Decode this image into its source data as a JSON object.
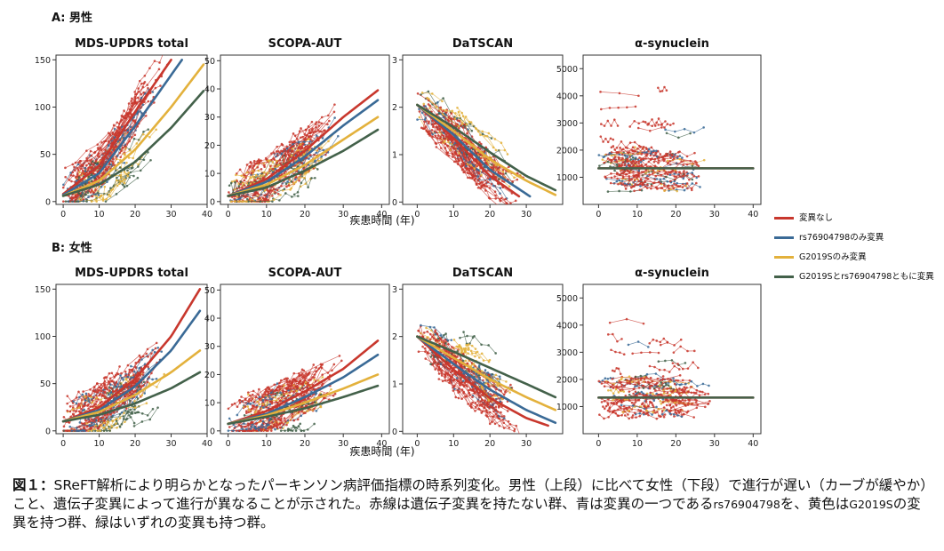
{
  "figure_caption": {
    "label": "図１：",
    "text_1": "SReFT解析により明らかとなったパーキンソン病評価指標の時系列変化。男性（上段）に比べて女性（下段）で進行が遅い（カーブが緩やか）こと、遺伝子変異によって進行が異なることが示された。赤線は遺伝子変異を持たない群、青は変異の一つである",
    "text_rs": "rs76904798",
    "text_2": "を、黄色は",
    "text_g": "G2019S",
    "text_3": "の変異を持つ群、緑はいずれの変異も持つ群。"
  },
  "legend": [
    {
      "label": "変異なし",
      "color": "#c8372d"
    },
    {
      "label": "rs76904798のみ変異",
      "color": "#3a6a96"
    },
    {
      "label": "G2019Sのみ変異",
      "color": "#e3b13c"
    },
    {
      "label": "G2019Sとrs76904798ともに変異",
      "color": "#43614a"
    }
  ],
  "colors": {
    "red": "#c8372d",
    "blue": "#3a6a96",
    "yellow": "#e3b13c",
    "green": "#43614a"
  },
  "chart_data": [
    {
      "row_label": "A: 男性",
      "type": "line",
      "title": "MDS-UPDRS total",
      "xlabel": "疾患時間 (年)",
      "xlim": [
        -2,
        40
      ],
      "ylim": [
        -3,
        155
      ],
      "xticks": [
        0,
        10,
        20,
        30,
        40
      ],
      "yticks": [
        0,
        50,
        100,
        150
      ],
      "series": [
        {
          "name": "変異なし",
          "x": [
            0,
            10,
            20,
            30
          ],
          "y": [
            8,
            38,
            95,
            150
          ]
        },
        {
          "name": "rs76904798のみ変異",
          "x": [
            0,
            10,
            20,
            33
          ],
          "y": [
            7,
            30,
            80,
            150
          ]
        },
        {
          "name": "G2019Sのみ変異",
          "x": [
            0,
            10,
            20,
            30,
            39
          ],
          "y": [
            6,
            22,
            55,
            100,
            145
          ]
        },
        {
          "name": "G2019Sとrs76904798ともに変異",
          "x": [
            0,
            10,
            20,
            30,
            39
          ],
          "y": [
            6,
            18,
            42,
            78,
            117
          ]
        }
      ]
    },
    {
      "row_label": "A: 男性",
      "type": "line",
      "title": "SCOPA-AUT",
      "xlabel": "疾患時間 (年)",
      "xlim": [
        -2,
        42
      ],
      "ylim": [
        -1,
        52
      ],
      "xticks": [
        0,
        10,
        20,
        30,
        40
      ],
      "yticks": [
        0,
        10,
        20,
        30,
        40,
        50
      ],
      "series": [
        {
          "name": "変異なし",
          "x": [
            0,
            10,
            20,
            30,
            39
          ],
          "y": [
            2,
            8,
            18,
            30,
            39.5
          ]
        },
        {
          "name": "rs76904798のみ変異",
          "x": [
            0,
            10,
            20,
            30,
            39
          ],
          "y": [
            2,
            7,
            16,
            27,
            36
          ]
        },
        {
          "name": "G2019Sのみ変異",
          "x": [
            0,
            10,
            20,
            30,
            39
          ],
          "y": [
            2,
            6,
            13,
            22,
            30
          ]
        },
        {
          "name": "G2019Sとrs76904798ともに変異",
          "x": [
            0,
            10,
            20,
            30,
            39
          ],
          "y": [
            2,
            5,
            11,
            18,
            25.5
          ]
        }
      ]
    },
    {
      "row_label": "A: 男性",
      "type": "line",
      "title": "DaTSCAN",
      "xlabel": "疾患時間 (年)",
      "xlim": [
        -4,
        40
      ],
      "ylim": [
        -0.05,
        3.1
      ],
      "xticks": [
        0,
        10,
        20,
        30
      ],
      "yticks": [
        0,
        1,
        2,
        3
      ],
      "series": [
        {
          "name": "変異なし",
          "x": [
            0,
            10,
            20,
            28
          ],
          "y": [
            2.05,
            1.35,
            0.55,
            0.12
          ]
        },
        {
          "name": "rs76904798のみ変異",
          "x": [
            0,
            10,
            20,
            31
          ],
          "y": [
            2.05,
            1.42,
            0.68,
            0.12
          ]
        },
        {
          "name": "G2019Sのみ変異",
          "x": [
            0,
            10,
            20,
            30,
            38
          ],
          "y": [
            2.05,
            1.5,
            0.9,
            0.45,
            0.15
          ]
        },
        {
          "name": "G2019Sとrs76904798ともに変異",
          "x": [
            0,
            10,
            20,
            30,
            38
          ],
          "y": [
            2.05,
            1.58,
            1.05,
            0.55,
            0.25
          ]
        }
      ]
    },
    {
      "row_label": "A: 男性",
      "type": "line",
      "title": "α-synuclein",
      "xlabel": "疾患時間 (年)",
      "xlim": [
        -4,
        42
      ],
      "ylim": [
        0,
        5500
      ],
      "xticks": [
        0,
        10,
        20,
        30,
        40
      ],
      "yticks": [
        1000,
        2000,
        3000,
        4000,
        5000
      ],
      "series": [
        {
          "name": "変異なし",
          "x": [
            0,
            40
          ],
          "y": [
            1330,
            1330
          ]
        },
        {
          "name": "G2019Sとrs76904798ともに変異",
          "x": [
            0,
            40
          ],
          "y": [
            1330,
            1330
          ]
        }
      ]
    },
    {
      "row_label": "B: 女性",
      "type": "line",
      "title": "MDS-UPDRS total",
      "xlabel": "疾患時間 (年)",
      "xlim": [
        -2,
        40
      ],
      "ylim": [
        -3,
        155
      ],
      "xticks": [
        0,
        10,
        20,
        30,
        40
      ],
      "yticks": [
        0,
        50,
        100,
        150
      ],
      "series": [
        {
          "name": "変異なし",
          "x": [
            0,
            10,
            20,
            30,
            38
          ],
          "y": [
            10,
            25,
            55,
            100,
            150
          ]
        },
        {
          "name": "rs76904798のみ変異",
          "x": [
            0,
            10,
            20,
            30,
            38
          ],
          "y": [
            10,
            22,
            47,
            85,
            127
          ]
        },
        {
          "name": "G2019Sのみ変異",
          "x": [
            0,
            10,
            20,
            30,
            38
          ],
          "y": [
            10,
            20,
            38,
            62,
            85
          ]
        },
        {
          "name": "G2019Sとrs76904798ともに変異",
          "x": [
            0,
            10,
            20,
            30,
            38
          ],
          "y": [
            10,
            17,
            29,
            45,
            62
          ]
        }
      ]
    },
    {
      "row_label": "B: 女性",
      "type": "line",
      "title": "SCOPA-AUT",
      "xlabel": "疾患時間 (年)",
      "xlim": [
        -2,
        42
      ],
      "ylim": [
        -1,
        52
      ],
      "xticks": [
        0,
        10,
        20,
        30,
        40
      ],
      "yticks": [
        0,
        10,
        20,
        30,
        40,
        50
      ],
      "series": [
        {
          "name": "変異なし",
          "x": [
            0,
            10,
            20,
            30,
            39
          ],
          "y": [
            2.5,
            7,
            14,
            22,
            32
          ]
        },
        {
          "name": "rs76904798のみ変異",
          "x": [
            0,
            10,
            20,
            30,
            39
          ],
          "y": [
            2.5,
            6,
            12,
            19,
            27
          ]
        },
        {
          "name": "G2019Sのみ変異",
          "x": [
            0,
            10,
            20,
            30,
            39
          ],
          "y": [
            2.5,
            5.5,
            10,
            15,
            20
          ]
        },
        {
          "name": "G2019Sとrs76904798ともに変異",
          "x": [
            0,
            10,
            20,
            30,
            39
          ],
          "y": [
            2.5,
            5,
            8,
            12,
            16
          ]
        }
      ]
    },
    {
      "row_label": "B: 女性",
      "type": "line",
      "title": "DaTSCAN",
      "xlabel": "疾患時間 (年)",
      "xlim": [
        -4,
        40
      ],
      "ylim": [
        -0.05,
        3.1
      ],
      "xticks": [
        0,
        10,
        20,
        30
      ],
      "yticks": [
        0,
        1,
        2,
        3
      ],
      "series": [
        {
          "name": "変異なし",
          "x": [
            0,
            10,
            20,
            30,
            36
          ],
          "y": [
            2.0,
            1.3,
            0.7,
            0.28,
            0.12
          ]
        },
        {
          "name": "rs76904798のみ変異",
          "x": [
            0,
            10,
            20,
            30,
            38
          ],
          "y": [
            2.0,
            1.42,
            0.88,
            0.45,
            0.18
          ]
        },
        {
          "name": "G2019Sのみ変異",
          "x": [
            0,
            10,
            20,
            30,
            38
          ],
          "y": [
            2.0,
            1.55,
            1.1,
            0.72,
            0.45
          ]
        },
        {
          "name": "G2019Sとrs76904798ともに変異",
          "x": [
            0,
            10,
            20,
            30,
            38
          ],
          "y": [
            2.0,
            1.68,
            1.34,
            1.0,
            0.72
          ]
        }
      ]
    },
    {
      "row_label": "B: 女性",
      "type": "line",
      "title": "α-synuclein",
      "xlabel": "疾患時間 (年)",
      "xlim": [
        -4,
        42
      ],
      "ylim": [
        0,
        5500
      ],
      "xticks": [
        0,
        10,
        20,
        30,
        40
      ],
      "yticks": [
        1000,
        2000,
        3000,
        4000,
        5000
      ],
      "series": [
        {
          "name": "変異なし",
          "x": [
            0,
            40
          ],
          "y": [
            1330,
            1330
          ]
        },
        {
          "name": "G2019Sとrs76904798ともに変異",
          "x": [
            0,
            40
          ],
          "y": [
            1330,
            1330
          ]
        }
      ]
    }
  ],
  "row_labels": [
    "A: 男性",
    "B: 女性"
  ],
  "shared_xlabel": "疾患時間 (年)"
}
